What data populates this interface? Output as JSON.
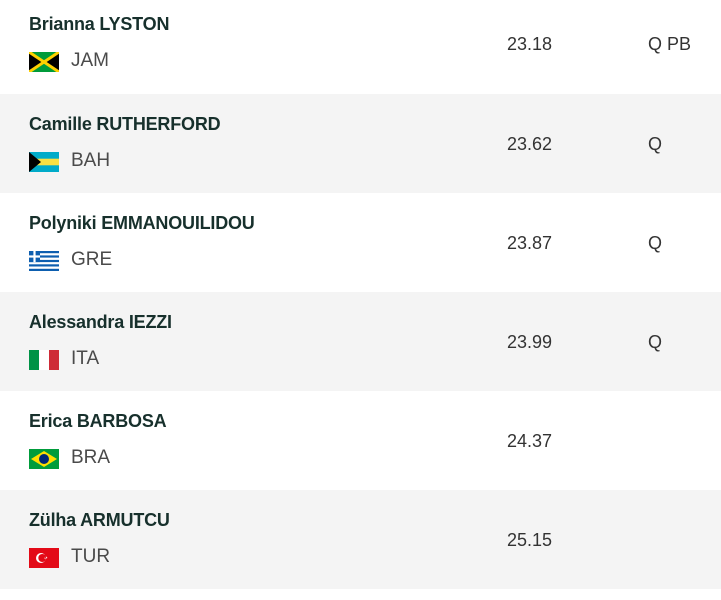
{
  "rows": [
    {
      "name": "Brianna LYSTON",
      "country": "JAM",
      "time": "23.18",
      "qualifier": "Q PB"
    },
    {
      "name": "Camille RUTHERFORD",
      "country": "BAH",
      "time": "23.62",
      "qualifier": "Q"
    },
    {
      "name": "Polyniki EMMANOUILIDOU",
      "country": "GRE",
      "time": "23.87",
      "qualifier": "Q"
    },
    {
      "name": "Alessandra IEZZI",
      "country": "ITA",
      "time": "23.99",
      "qualifier": "Q"
    },
    {
      "name": "Erica BARBOSA",
      "country": "BRA",
      "time": "24.37"
    },
    {
      "name": "Zülha ARMUTCU",
      "country": "TUR",
      "time": "25.15"
    }
  ]
}
